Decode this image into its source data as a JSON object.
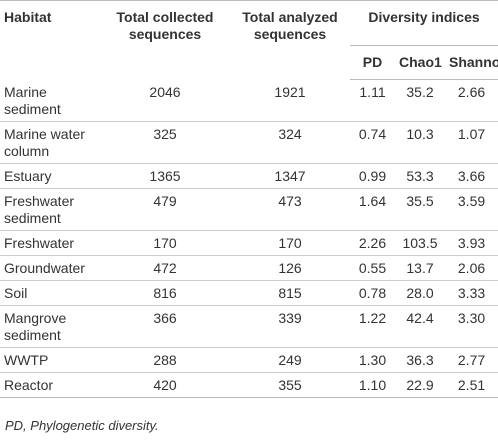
{
  "table": {
    "headers": {
      "habitat": "Habitat",
      "total_collected": "Total collected sequences",
      "total_analyzed": "Total analyzed sequences",
      "diversity": "Diversity indices",
      "pd": "PD",
      "chao1": "Chao1",
      "shannon": "Shannon"
    },
    "rows": [
      [
        "Marine sediment",
        "2046",
        "1921",
        "1.11",
        "35.2",
        "2.66"
      ],
      [
        "Marine water column",
        "325",
        "324",
        "0.74",
        "10.3",
        "1.07"
      ],
      [
        "Estuary",
        "1365",
        "1347",
        "0.99",
        "53.3",
        "3.66"
      ],
      [
        "Freshwater sediment",
        "479",
        "473",
        "1.64",
        "35.5",
        "3.59"
      ],
      [
        "Freshwater",
        "170",
        "170",
        "2.26",
        "103.5",
        "3.93"
      ],
      [
        "Groundwater",
        "472",
        "126",
        "0.55",
        "13.7",
        "2.06"
      ],
      [
        "Soil",
        "816",
        "815",
        "0.78",
        "28.0",
        "3.33"
      ],
      [
        "Mangrove sediment",
        "366",
        "339",
        "1.22",
        "42.4",
        "3.30"
      ],
      [
        "WWTP",
        "288",
        "249",
        "1.30",
        "36.3",
        "2.77"
      ],
      [
        "Reactor",
        "420",
        "355",
        "1.10",
        "22.9",
        "2.51"
      ]
    ],
    "footnote": "PD, Phylogenetic diversity."
  }
}
